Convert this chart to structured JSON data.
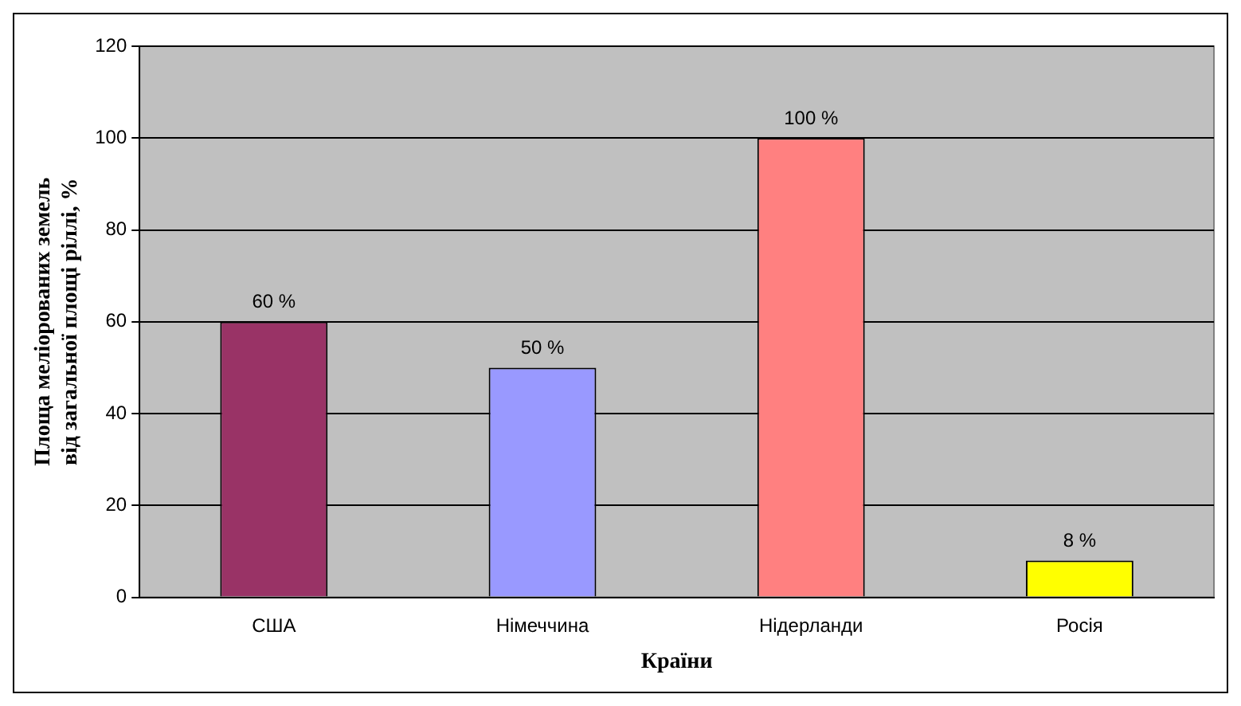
{
  "chart_data": {
    "type": "bar",
    "xlabel": "Країни",
    "ylabel": "Площа меліорованих земель від загальної площі ріллі, %",
    "categories": [
      "США",
      "Німеччина",
      "Нідерланди",
      "Росія"
    ],
    "values": [
      60,
      50,
      100,
      8
    ],
    "colors": [
      "#993366",
      "#9999ff",
      "#ff8080",
      "#ffff00"
    ],
    "value_labels": [
      "60 %",
      "50 %",
      "100 %",
      "8 %"
    ],
    "ylim": [
      0,
      120
    ],
    "yticks": [
      0,
      20,
      40,
      60,
      80,
      100,
      120
    ],
    "grid": "y",
    "legend": false
  }
}
